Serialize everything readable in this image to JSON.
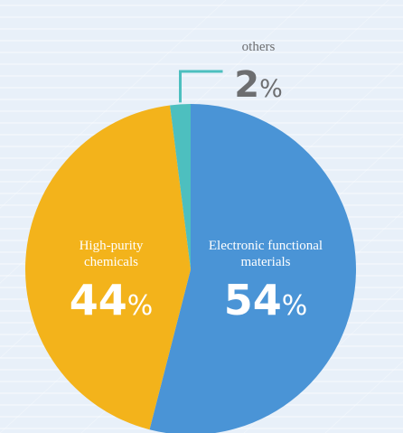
{
  "chart_data": {
    "type": "pie",
    "slices": [
      {
        "name": "Electronic functional materials",
        "value": 54,
        "color": "#4a94d6"
      },
      {
        "name": "High-purity chemicals",
        "value": 44,
        "color": "#f3b31b"
      },
      {
        "name": "others",
        "value": 2,
        "color": "#4dbfbf"
      }
    ],
    "labels": [
      {
        "lines": [
          "Electronic functional",
          "materials"
        ],
        "number": "54",
        "unit": "%"
      },
      {
        "lines": [
          "High-purity",
          "chemicals"
        ],
        "number": "44",
        "unit": "%"
      },
      {
        "lines": [
          "others"
        ],
        "number": "2",
        "unit": "%"
      }
    ],
    "leader_color": "#4dbfbf",
    "text_color_on_slice": "#ffffff",
    "text_color_outside": "#6d6e70",
    "background_color": "#e8f0f9"
  }
}
